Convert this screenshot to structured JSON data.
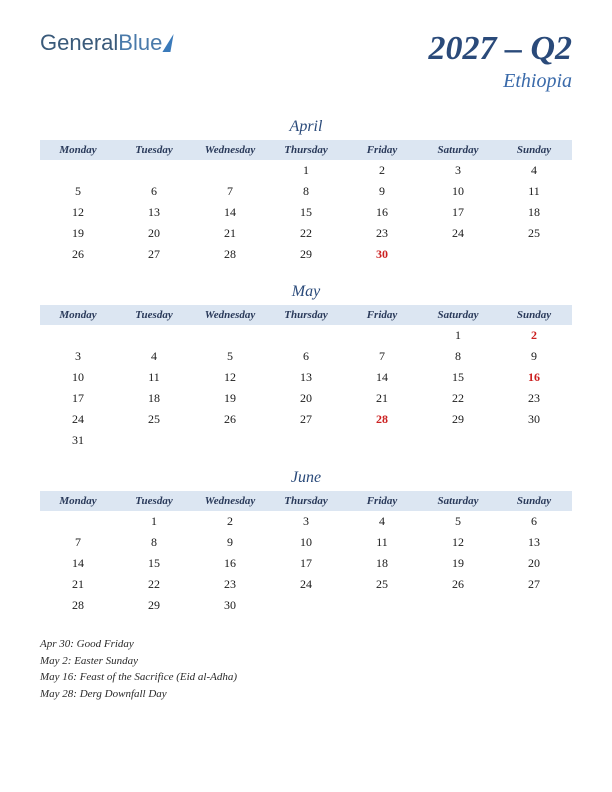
{
  "logo": {
    "part1": "General",
    "part2": "Blue"
  },
  "title": {
    "main": "2027 – Q2",
    "sub": "Ethiopia"
  },
  "day_headers": [
    "Monday",
    "Tuesday",
    "Wednesday",
    "Thursday",
    "Friday",
    "Saturday",
    "Sunday"
  ],
  "months": [
    {
      "name": "April",
      "weeks": [
        [
          "",
          "",
          "",
          "1",
          "2",
          "3",
          "4"
        ],
        [
          "5",
          "6",
          "7",
          "8",
          "9",
          "10",
          "11"
        ],
        [
          "12",
          "13",
          "14",
          "15",
          "16",
          "17",
          "18"
        ],
        [
          "19",
          "20",
          "21",
          "22",
          "23",
          "24",
          "25"
        ],
        [
          "26",
          "27",
          "28",
          "29",
          "30",
          "",
          ""
        ]
      ],
      "holidays_cells": [
        [
          4,
          4
        ]
      ]
    },
    {
      "name": "May",
      "weeks": [
        [
          "",
          "",
          "",
          "",
          "",
          "1",
          "2"
        ],
        [
          "3",
          "4",
          "5",
          "6",
          "7",
          "8",
          "9"
        ],
        [
          "10",
          "11",
          "12",
          "13",
          "14",
          "15",
          "16"
        ],
        [
          "17",
          "18",
          "19",
          "20",
          "21",
          "22",
          "23"
        ],
        [
          "24",
          "25",
          "26",
          "27",
          "28",
          "29",
          "30"
        ],
        [
          "31",
          "",
          "",
          "",
          "",
          "",
          ""
        ]
      ],
      "holidays_cells": [
        [
          0,
          6
        ],
        [
          2,
          6
        ],
        [
          4,
          4
        ]
      ]
    },
    {
      "name": "June",
      "weeks": [
        [
          "",
          "1",
          "2",
          "3",
          "4",
          "5",
          "6"
        ],
        [
          "7",
          "8",
          "9",
          "10",
          "11",
          "12",
          "13"
        ],
        [
          "14",
          "15",
          "16",
          "17",
          "18",
          "19",
          "20"
        ],
        [
          "21",
          "22",
          "23",
          "24",
          "25",
          "26",
          "27"
        ],
        [
          "28",
          "29",
          "30",
          "",
          "",
          "",
          ""
        ]
      ],
      "holidays_cells": []
    }
  ],
  "holiday_list": [
    "Apr 30: Good Friday",
    "May 2: Easter Sunday",
    "May 16: Feast of the Sacrifice (Eid al-Adha)",
    "May 28: Derg Downfall Day"
  ],
  "colors": {
    "header_bg": "#dce6f2",
    "title_color": "#2a4a7a",
    "subtitle_color": "#3a6aaa",
    "holiday_color": "#cc2020",
    "text_color": "#1a1a1a"
  }
}
